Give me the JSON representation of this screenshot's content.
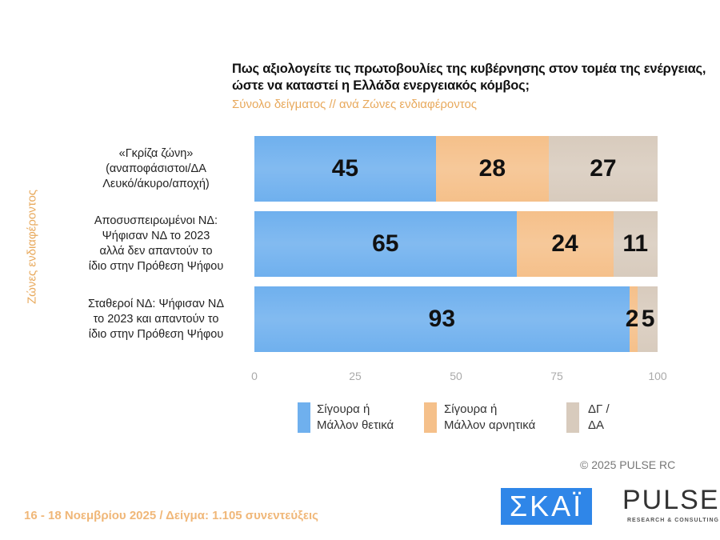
{
  "chart_data": {
    "type": "bar",
    "orientation": "horizontal-stacked",
    "title": "Πως αξιολογείτε τις πρωτοβουλίες της κυβέρνησης στον τομέα της ενέργειας, ώστε να καταστεί η Ελλάδα ενεργειακός κόμβος;",
    "subtitle": "Σύνολο δείγματος // ανά Ζώνες ενδιαφέροντος",
    "ylabel": "Ζώνες ενδιαφέροντος",
    "xlim": [
      0,
      100
    ],
    "xticks": [
      "0",
      "25",
      "50",
      "75",
      "100"
    ],
    "categories": [
      [
        "«Γκρίζα ζώνη»",
        "(αναποφάσιστοι/ΔΑ",
        "Λευκό/άκυρο/αποχή)"
      ],
      [
        "Αποσυσπειρωμένοι ΝΔ:",
        "Ψήφισαν ΝΔ το 2023",
        "αλλά δεν απαντούν το",
        "ίδιο στην Πρόθεση Ψήφου"
      ],
      [
        "Σταθεροί ΝΔ: Ψήφισαν ΝΔ",
        "το 2023 και απαντούν το",
        "ίδιο στην Πρόθεση Ψήφου"
      ]
    ],
    "series": [
      {
        "name": "Σίγουρα ή Μάλλον θετικά",
        "legend": [
          "Σίγουρα ή",
          "Μάλλον θετικά"
        ],
        "color": "#6fb0ee",
        "values": [
          45,
          65,
          93
        ]
      },
      {
        "name": "Σίγουρα ή Μάλλον αρνητικά",
        "legend": [
          "Σίγουρα ή",
          "Μάλλον αρνητικά"
        ],
        "color": "#f5c08a",
        "values": [
          28,
          24,
          2
        ]
      },
      {
        "name": "ΔΓ / ΔΑ",
        "legend": [
          "ΔΓ /",
          "ΔΑ"
        ],
        "color": "#d8cbbd",
        "values": [
          27,
          11,
          5
        ]
      }
    ],
    "legend_position": "bottom",
    "grid": false
  },
  "footer": "16 - 18 Νοεμβρίου 2025  /  Δείγμα:  1.105 συνεντεύξεις",
  "copyright": "© 2025  PULSE RC",
  "logos": {
    "skai": "ΣΚΑΪ",
    "pulse": "PULSE",
    "pulse_sub": "RESEARCH & CONSULTING"
  }
}
